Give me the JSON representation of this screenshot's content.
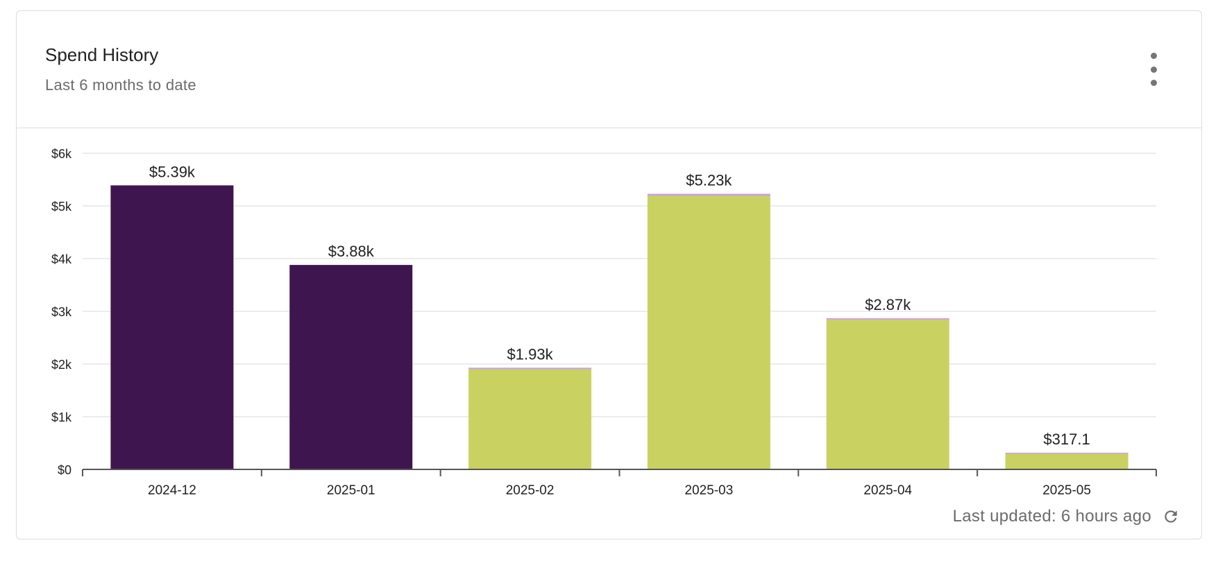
{
  "card": {
    "title": "Spend History",
    "subtitle": "Last 6 months to date",
    "menu_icon": "more-vertical-icon",
    "last_updated": "Last updated: 6 hours ago",
    "refresh_icon": "refresh-icon"
  },
  "chart_data": {
    "type": "bar",
    "stacked": true,
    "categories": [
      "2024-12",
      "2025-01",
      "2025-02",
      "2025-03",
      "2025-04",
      "2025-05"
    ],
    "series": [
      {
        "values": [
          5390,
          3880,
          0,
          0,
          0,
          0
        ],
        "color": "#3f154f"
      },
      {
        "values": [
          0,
          0,
          1900,
          5190,
          2840,
          300
        ],
        "color": "#c9d260"
      },
      {
        "values": [
          0,
          0,
          30,
          40,
          30,
          17.1
        ],
        "color": "#c9a4d8"
      }
    ],
    "totals": [
      5390,
      3880,
      1930,
      5230,
      2870,
      317.1
    ],
    "data_labels": [
      "$5.39k",
      "$3.88k",
      "$1.93k",
      "$5.23k",
      "$2.87k",
      "$317.1"
    ],
    "y_ticks": [
      {
        "value": 0,
        "label": "$0"
      },
      {
        "value": 1000,
        "label": "$1k"
      },
      {
        "value": 2000,
        "label": "$2k"
      },
      {
        "value": 3000,
        "label": "$3k"
      },
      {
        "value": 4000,
        "label": "$4k"
      },
      {
        "value": 5000,
        "label": "$5k"
      },
      {
        "value": 6000,
        "label": "$6k"
      }
    ],
    "ylim": [
      0,
      6000
    ],
    "grid": true,
    "legend": "none"
  }
}
